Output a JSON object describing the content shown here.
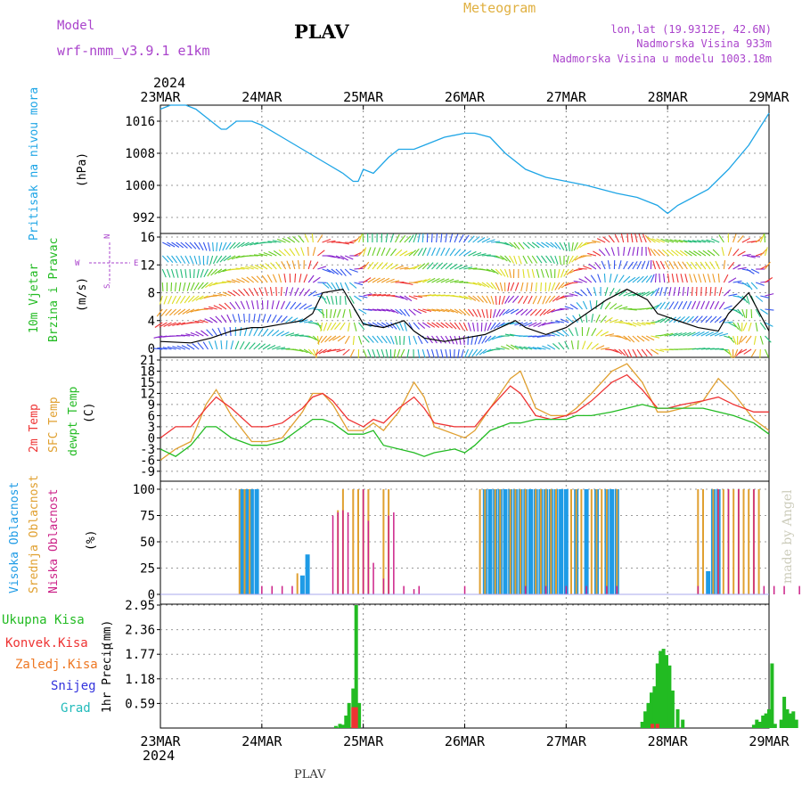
{
  "header": {
    "model_label": "Model",
    "model_name": "wrf-nmm_v3.9.1 e1km",
    "station": "PLAV",
    "meteogram_label": "Meteogram",
    "lonlat": "lon,lat (19.9312E, 42.6N)",
    "elevation": "Nadmorska Visina 933m",
    "model_elevation": "Nadmorska Visina u modelu 1003.18m",
    "year_top": "2024",
    "year_bottom": "2024",
    "footer_station": "PLAV",
    "watermark": "made by Angel"
  },
  "colors": {
    "pressure": "#1ea5e6",
    "wind_label": "#22bb22",
    "temp2m": "#ee3333",
    "sfc_temp": "#e0a030",
    "dewpt": "#22bb22",
    "high_cloud": "#1e9be6",
    "mid_cloud": "#e0a030",
    "low_cloud": "#cc2288",
    "total_precip": "#22bb22",
    "conv_precip": "#ee3333",
    "frozen_precip": "#ee7722",
    "snow": "#3333dd",
    "hail": "#22bbbb",
    "purple_text": "#aa44cc",
    "gold_text": "#e0b040"
  },
  "time_axis": {
    "start": "2024-03-23T00:00",
    "end": "2024-03-29T00:00",
    "tick_labels": [
      "23MAR",
      "24MAR",
      "25MAR",
      "26MAR",
      "27MAR",
      "28MAR",
      "29MAR"
    ]
  },
  "chart_data": [
    {
      "type": "line",
      "name": "pressure",
      "ylabel_main": "Pritisak na nivou mora",
      "ylabel_unit": "(hPa)",
      "ylim": [
        990,
        1020
      ],
      "yticks": [
        992,
        1000,
        1008,
        1016
      ],
      "grid": true,
      "x_days": [
        0,
        0.1,
        0.25,
        0.35,
        0.5,
        0.6,
        0.65,
        0.75,
        0.9,
        1.0,
        1.2,
        1.4,
        1.6,
        1.8,
        1.9,
        1.95,
        2.0,
        2.1,
        2.25,
        2.35,
        2.5,
        2.6,
        2.8,
        3.0,
        3.1,
        3.25,
        3.4,
        3.6,
        3.8,
        4.0,
        4.2,
        4.5,
        4.7,
        4.9,
        5.0,
        5.1,
        5.4,
        5.6,
        5.8,
        6.0
      ],
      "series": [
        {
          "values": [
            1019,
            1020,
            1020,
            1019,
            1016,
            1014,
            1014,
            1016,
            1016,
            1015,
            1012,
            1009,
            1006,
            1003,
            1001,
            1001,
            1004,
            1003,
            1007,
            1009,
            1009,
            1010,
            1012,
            1013,
            1013,
            1012,
            1008,
            1004,
            1002,
            1001,
            1000,
            998,
            997,
            995,
            993,
            995,
            999,
            1004,
            1010,
            1018
          ]
        }
      ]
    },
    {
      "type": "line",
      "name": "wind",
      "ylabel_main": "10m Vjetar",
      "ylabel_main2": "Brzina i Pravac",
      "ylabel_unit": "(m/s)",
      "compass_n": "N",
      "compass_s": "S",
      "compass_w": "W",
      "compass_e": "E",
      "ylim": [
        0,
        16
      ],
      "yticks": [
        0,
        4,
        8,
        12,
        16
      ],
      "grid": true,
      "x_days": [
        0,
        0.3,
        0.5,
        0.7,
        0.9,
        1.0,
        1.2,
        1.4,
        1.5,
        1.6,
        1.8,
        1.9,
        2.0,
        2.2,
        2.4,
        2.5,
        2.6,
        2.8,
        3.0,
        3.2,
        3.5,
        3.6,
        3.8,
        4.0,
        4.2,
        4.4,
        4.6,
        4.8,
        4.9,
        5.0,
        5.1,
        5.3,
        5.5,
        5.6,
        5.8,
        6.0
      ],
      "series": [
        {
          "name": "speed",
          "values": [
            1,
            0.8,
            1.5,
            2.5,
            3,
            3,
            3.5,
            4,
            5,
            8,
            8.5,
            6,
            3.5,
            3,
            4,
            2.5,
            1.5,
            1,
            1.5,
            2,
            4,
            3,
            2,
            3,
            5,
            7,
            8.5,
            7,
            5,
            4.5,
            4,
            3,
            2.5,
            5,
            8,
            2.5
          ]
        }
      ]
    },
    {
      "type": "line",
      "name": "temperature",
      "ylabel_main": "2m Temp",
      "ylabel_main2": "SFC Temp",
      "ylabel_main3": "dewpt Temp",
      "ylabel_unit": "(C)",
      "ylim": [
        -10,
        21
      ],
      "yticks": [
        -9,
        -6,
        -3,
        0,
        3,
        6,
        9,
        12,
        15,
        18,
        21
      ],
      "grid": true,
      "x_days": [
        0,
        0.15,
        0.3,
        0.45,
        0.55,
        0.7,
        0.9,
        1.05,
        1.2,
        1.4,
        1.5,
        1.6,
        1.7,
        1.85,
        2.0,
        2.1,
        2.2,
        2.35,
        2.5,
        2.6,
        2.7,
        2.9,
        3.0,
        3.1,
        3.25,
        3.45,
        3.55,
        3.7,
        3.85,
        4.0,
        4.1,
        4.25,
        4.45,
        4.6,
        4.75,
        4.9,
        5.0,
        5.15,
        5.35,
        5.5,
        5.65,
        5.85,
        6.0
      ],
      "series": [
        {
          "name": "2m Temp",
          "values": [
            0,
            3,
            3,
            8,
            11,
            8,
            3,
            3,
            4,
            8,
            11,
            12,
            10,
            5,
            3,
            5,
            4,
            8,
            11,
            8,
            4,
            3,
            3,
            3,
            8,
            14,
            12,
            6,
            5,
            6,
            7,
            10,
            15,
            17,
            13,
            8,
            8,
            9,
            10,
            11,
            9,
            7,
            7
          ]
        },
        {
          "name": "SFC Temp",
          "values": [
            -6,
            -3,
            -1,
            9,
            13,
            6,
            -1,
            -1,
            0,
            7,
            12,
            12,
            9,
            2,
            2,
            4,
            2,
            7,
            15,
            11,
            3,
            1,
            0,
            2,
            8,
            16,
            18,
            8,
            6,
            6,
            8,
            12,
            18,
            20,
            15,
            7,
            7,
            8,
            10,
            16,
            12,
            5,
            2
          ]
        },
        {
          "name": "dewpt Temp",
          "values": [
            -3,
            -5,
            -2,
            3,
            3,
            0,
            -2,
            -2,
            -1,
            3,
            5,
            5,
            4,
            1,
            1,
            2,
            -2,
            -3,
            -4,
            -5,
            -4,
            -3,
            -4,
            -2,
            2,
            4,
            4,
            5,
            5,
            5,
            6,
            6,
            7,
            8,
            9,
            8,
            8,
            8,
            8,
            7,
            6,
            4,
            1
          ]
        }
      ]
    },
    {
      "type": "bar",
      "name": "clouds",
      "ylabel_main": "Visoka Oblacnost",
      "ylabel_main2": "Srednja Oblacnost",
      "ylabel_main3": "Niska Oblacnost",
      "ylabel_unit": "(%)",
      "ylim": [
        0,
        100
      ],
      "yticks": [
        0,
        25,
        50,
        75,
        100
      ],
      "grid": true,
      "series": [
        {
          "name": "Visoka Oblacnost",
          "x_days": [
            0.8,
            0.85,
            0.9,
            0.95,
            1.4,
            1.45,
            3.2,
            3.25,
            3.3,
            3.35,
            3.4,
            3.45,
            3.5,
            3.55,
            3.6,
            3.65,
            3.7,
            3.75,
            3.8,
            3.85,
            3.9,
            3.95,
            4.0,
            4.1,
            4.2,
            4.3,
            4.4,
            4.45,
            4.5,
            5.4,
            5.45,
            5.5
          ],
          "values": [
            100,
            100,
            100,
            100,
            18,
            38,
            100,
            100,
            100,
            100,
            100,
            100,
            100,
            100,
            100,
            100,
            100,
            100,
            100,
            100,
            100,
            100,
            100,
            100,
            100,
            100,
            100,
            100,
            100,
            22,
            100,
            100
          ]
        },
        {
          "name": "Srednja Oblacnost",
          "x_days": [
            0.78,
            0.83,
            0.88,
            1.35,
            1.75,
            1.8,
            1.9,
            1.95,
            2.0,
            2.05,
            2.2,
            2.25,
            3.15,
            3.2,
            3.3,
            3.35,
            3.45,
            3.5,
            3.55,
            3.6,
            3.7,
            3.75,
            3.8,
            3.85,
            3.9,
            4.05,
            4.1,
            4.15,
            4.25,
            4.3,
            4.35,
            4.4,
            4.5,
            5.3,
            5.35,
            5.45,
            5.5,
            5.55,
            5.6,
            5.65,
            5.7,
            5.75,
            5.8,
            5.85,
            5.9
          ],
          "values": [
            100,
            100,
            100,
            20,
            80,
            100,
            100,
            100,
            100,
            100,
            100,
            100,
            100,
            100,
            100,
            100,
            100,
            100,
            100,
            100,
            100,
            100,
            100,
            100,
            100,
            100,
            100,
            100,
            100,
            100,
            100,
            100,
            100,
            100,
            100,
            100,
            100,
            100,
            100,
            100,
            100,
            100,
            100,
            100,
            100
          ]
        },
        {
          "name": "Niska Oblacnost",
          "x_days": [
            1.0,
            1.1,
            1.2,
            1.3,
            1.7,
            1.75,
            1.8,
            1.85,
            2.0,
            2.05,
            2.1,
            2.2,
            2.25,
            2.3,
            2.4,
            2.5,
            2.55,
            3.0,
            3.6,
            3.8,
            4.0,
            4.2,
            4.4,
            4.5,
            5.3,
            5.5,
            5.6,
            5.7,
            5.85,
            5.95,
            6.05,
            6.15,
            6.3,
            6.35
          ],
          "values": [
            8,
            8,
            8,
            8,
            75,
            78,
            80,
            78,
            100,
            70,
            30,
            15,
            75,
            78,
            8,
            5,
            8,
            8,
            8,
            8,
            8,
            8,
            8,
            8,
            8,
            100,
            100,
            100,
            100,
            8,
            8,
            8,
            8,
            8
          ]
        }
      ]
    },
    {
      "type": "bar",
      "name": "precipitation",
      "legend": [
        "Ukupna Kisa",
        "Konvek.Kisa",
        "Zaledj.Kisa",
        "Snijeg",
        "Grad"
      ],
      "ylabel_main": "1hr Precip",
      "ylabel_unit": "(mm)",
      "ylim": [
        0,
        2.95
      ],
      "yticks": [
        0.59,
        1.18,
        1.77,
        2.36,
        2.95
      ],
      "grid": true,
      "series": [
        {
          "name": "Ukupna Kisa",
          "x_days": [
            1.73,
            1.77,
            1.8,
            1.83,
            1.86,
            1.9,
            1.93,
            1.96,
            4.75,
            4.78,
            4.81,
            4.84,
            4.87,
            4.9,
            4.93,
            4.96,
            4.99,
            5.02,
            5.05,
            5.1,
            5.15,
            5.85,
            5.88,
            5.91,
            5.94,
            5.97,
            6.0,
            6.03,
            6.06,
            6.12,
            6.15,
            6.18,
            6.21,
            6.24,
            6.27
          ],
          "values": [
            0.05,
            0.1,
            0.08,
            0.3,
            0.6,
            0.95,
            2.95,
            0.6,
            0.15,
            0.4,
            0.6,
            0.85,
            1.0,
            1.55,
            1.85,
            1.9,
            1.75,
            1.5,
            0.9,
            0.45,
            0.2,
            0.08,
            0.2,
            0.15,
            0.3,
            0.35,
            0.45,
            1.55,
            0.1,
            0.2,
            0.75,
            0.45,
            0.35,
            0.4,
            0.2
          ]
        },
        {
          "name": "Konvek.Kisa",
          "x_days": [
            1.9,
            1.93,
            4.85,
            4.9
          ],
          "values": [
            0.5,
            0.5,
            0.1,
            0.1
          ]
        }
      ]
    }
  ]
}
